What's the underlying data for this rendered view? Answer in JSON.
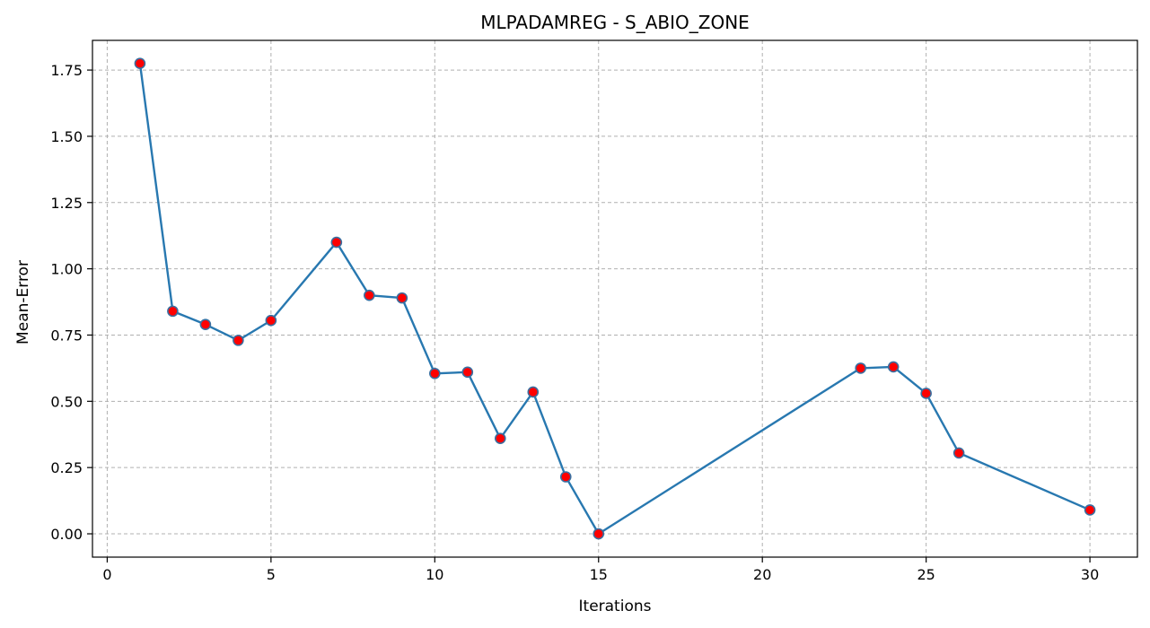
{
  "chart_data": {
    "type": "line",
    "title": "MLPADAMREG - S_ABIO_ZONE",
    "xlabel": "Iterations",
    "ylabel": "Mean-Error",
    "xlim": [
      -0.45,
      31.45
    ],
    "ylim": [
      -0.088,
      1.862
    ],
    "xticks": [
      0,
      5,
      10,
      15,
      20,
      25,
      30
    ],
    "xtick_labels": [
      "0",
      "5",
      "10",
      "15",
      "20",
      "25",
      "30"
    ],
    "yticks": [
      0.0,
      0.25,
      0.5,
      0.75,
      1.0,
      1.25,
      1.5,
      1.75
    ],
    "ytick_labels": [
      "0.00",
      "0.25",
      "0.50",
      "0.75",
      "1.00",
      "1.25",
      "1.50",
      "1.75"
    ],
    "grid": true,
    "series": [
      {
        "x": [
          1,
          2,
          3,
          4,
          5,
          7,
          8,
          9,
          10,
          11,
          12,
          13,
          14,
          15,
          23,
          24,
          25,
          26,
          30
        ],
        "y": [
          1.775,
          0.84,
          0.79,
          0.73,
          0.805,
          1.1,
          0.9,
          0.89,
          0.605,
          0.61,
          0.36,
          0.535,
          0.215,
          0.0,
          0.625,
          0.63,
          0.53,
          0.305,
          0.09
        ]
      }
    ],
    "colors": {
      "line": "#2878b0",
      "marker_fill": "#ff0000",
      "marker_edge": "#3a6fa0",
      "grid": "#b0b0b0",
      "axes": "#000000"
    }
  }
}
